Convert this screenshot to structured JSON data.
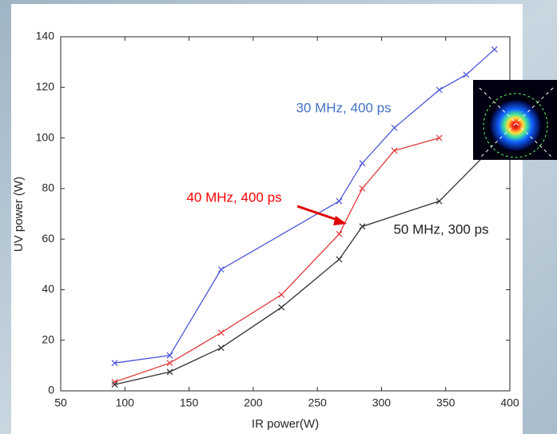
{
  "chart_data": {
    "type": "line",
    "xlabel": "IR power(W)",
    "ylabel": "UV power (W)",
    "xlim": [
      50,
      400
    ],
    "xticks": [
      50,
      100,
      150,
      200,
      250,
      300,
      350,
      400
    ],
    "ylim": [
      0,
      140
    ],
    "yticks": [
      0,
      20,
      40,
      60,
      80,
      100,
      120,
      140
    ],
    "series": [
      {
        "name": "30 MHz, 400 ps",
        "color": "#4a55d6",
        "x": [
          92,
          135,
          175,
          267,
          285,
          310,
          345,
          366,
          388
        ],
        "values": [
          11,
          14,
          48,
          75,
          90,
          104,
          119,
          125,
          135
        ]
      },
      {
        "name": "40 MHz, 400 ps",
        "color": "#e03a3a",
        "x": [
          92,
          135,
          175,
          222,
          267,
          285,
          310,
          345
        ],
        "values": [
          3.5,
          11,
          23,
          38,
          62,
          80,
          95,
          100
        ]
      },
      {
        "name": "50 MHz, 300 ps",
        "color": "#303030",
        "x": [
          92,
          135,
          175,
          222,
          267,
          285,
          345,
          388
        ],
        "values": [
          2.5,
          7.5,
          17,
          33,
          52,
          65,
          75,
          97
        ]
      }
    ],
    "label_colors": [
      "#4472c4",
      "#ff0000",
      "#202020"
    ]
  }
}
